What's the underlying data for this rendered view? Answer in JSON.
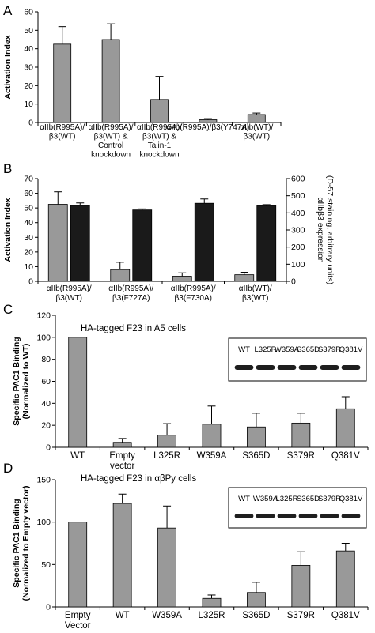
{
  "panels": {
    "a": {
      "letter": "A"
    },
    "b": {
      "letter": "B"
    },
    "c": {
      "letter": "C",
      "annotation": "HA-tagged F23 in A5 cells",
      "blot_labels": [
        "WT",
        "L325R",
        "W359A",
        "S365D",
        "S379R",
        "Q381V"
      ]
    },
    "d": {
      "letter": "D",
      "annotation": "HA-tagged F23 in αβPy cells",
      "blot_labels": [
        "WT",
        "W359A",
        "L325R",
        "S365D",
        "S379R",
        "Q381V"
      ]
    }
  },
  "colors": {
    "gray": "#999999",
    "black": "#1a1a1a",
    "axis": "#000000"
  },
  "chart_data": [
    {
      "id": "A",
      "type": "bar",
      "ylabel": "Activation Index",
      "ylim": [
        0,
        60
      ],
      "yticks": [
        0,
        10,
        20,
        30,
        40,
        50,
        60
      ],
      "categories": [
        [
          "αIIb(R995A)/",
          "β3(WT)"
        ],
        [
          "αIIb(R995A)/",
          "β3(WT) &",
          "Control",
          "knockdown"
        ],
        [
          "αIIb(R995A)/",
          "β3(WT) &",
          "Talin-1",
          "knockdown"
        ],
        [
          "αIIb(R995A)/β3(Y747A)"
        ],
        [
          "αIIb(WT)/",
          "β3(WT)"
        ]
      ],
      "values": [
        42.5,
        45,
        12.5,
        1.5,
        4.3
      ],
      "errors": [
        9.5,
        8.5,
        12.5,
        0.6,
        0.8
      ]
    },
    {
      "id": "B",
      "type": "bar",
      "ylabel": "Activation Index",
      "ylabel_right": [
        "αIIbβ3 expression",
        "(D-57 staining, arbitrary units)"
      ],
      "ylim": [
        0,
        70
      ],
      "yticks": [
        0,
        10,
        20,
        30,
        40,
        50,
        60,
        70
      ],
      "ylim_right": [
        0,
        600
      ],
      "yticks_right": [
        0,
        100,
        200,
        300,
        400,
        500,
        600
      ],
      "categories": [
        [
          "αIIb(R995A)/",
          "β3(WT)"
        ],
        [
          "αIIb(R995A)/",
          "β3(F727A)"
        ],
        [
          "αIIb(R995A)/",
          "β3(F730A)"
        ],
        [
          "αIIb(WT)/",
          "β3(WT)"
        ]
      ],
      "series": [
        {
          "axis": "left",
          "color": "gray",
          "values": [
            52.5,
            8,
            3.5,
            4.5
          ],
          "errors": [
            8.5,
            5,
            2.3,
            1.7
          ]
        },
        {
          "axis": "right",
          "color": "black",
          "values": [
            443,
            417,
            456,
            441
          ],
          "errors": [
            15,
            6,
            25,
            7
          ]
        }
      ]
    },
    {
      "id": "C",
      "type": "bar",
      "ylabel": [
        "Specific PAC1 Binding",
        "(Normalized to WT)"
      ],
      "ylim": [
        0,
        120
      ],
      "yticks": [
        0,
        20,
        40,
        60,
        80,
        100,
        120
      ],
      "categories": [
        [
          "WT"
        ],
        [
          "Empty",
          "vector"
        ],
        [
          "L325R"
        ],
        [
          "W359A"
        ],
        [
          "S365D"
        ],
        [
          "S379R"
        ],
        [
          "Q381V"
        ]
      ],
      "values": [
        100,
        4.5,
        11,
        21,
        18.5,
        22,
        35
      ],
      "errors": [
        0,
        3.5,
        10.5,
        16.5,
        12.5,
        9,
        11
      ]
    },
    {
      "id": "D",
      "type": "bar",
      "ylabel": [
        "Specific PAC1 Binding",
        "(Normalized to Empty vector)"
      ],
      "ylim": [
        0,
        150
      ],
      "yticks": [
        0,
        50,
        100,
        150
      ],
      "categories": [
        [
          "Empty",
          "Vector"
        ],
        [
          "WT"
        ],
        [
          "W359A"
        ],
        [
          "L325R"
        ],
        [
          "S365D"
        ],
        [
          "S379R"
        ],
        [
          "Q381V"
        ]
      ],
      "values": [
        100,
        122,
        93,
        10,
        17,
        49,
        66
      ],
      "errors": [
        0,
        11,
        26,
        4,
        12,
        16,
        9
      ]
    }
  ]
}
